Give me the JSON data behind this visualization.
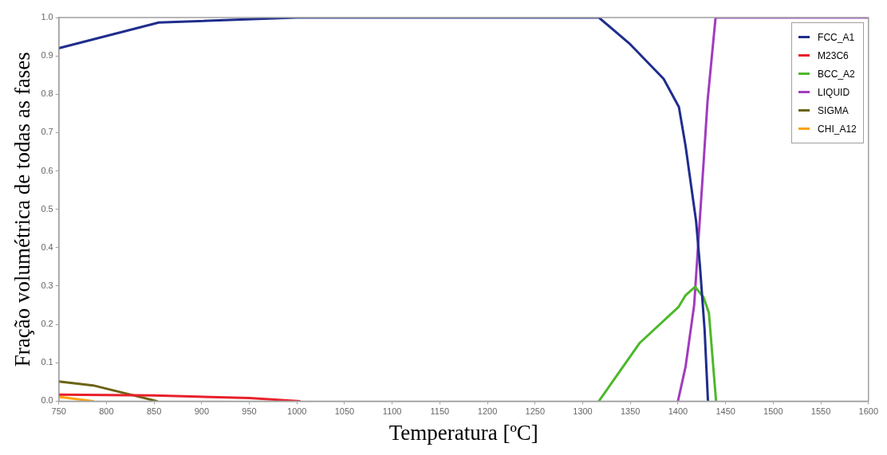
{
  "chart_data": {
    "type": "line",
    "xlabel": "Temperatura [ºC]",
    "ylabel": "Fração volumétrica de todas as fases",
    "xlim": [
      750,
      1600
    ],
    "xticks": [
      750,
      800,
      850,
      900,
      950,
      1000,
      1050,
      1100,
      1150,
      1200,
      1250,
      1300,
      1350,
      1400,
      1450,
      1500,
      1550,
      1600
    ],
    "ylim": [
      0,
      1
    ],
    "yticks": [
      {
        "value": 0,
        "label": "0.0"
      },
      0.1,
      0.2,
      0.3,
      0.4,
      0.5,
      0.6,
      0.7,
      0.8,
      0.9,
      {
        "value": 1,
        "label": "1.0"
      }
    ],
    "grid": false,
    "legend": "top right",
    "marker": "none",
    "line_style": "solid",
    "series": [
      {
        "name": "FCC_A1",
        "color": "#1f2d8c",
        "x": [
          750,
          855,
          1000,
          1317,
          1350,
          1385,
          1401,
          1408,
          1419,
          1423,
          1428,
          1431.5
        ],
        "values": [
          0.92,
          0.987,
          1.0,
          1.0,
          0.93,
          0.84,
          0.767,
          0.665,
          0.47,
          0.355,
          0.185,
          0
        ]
      },
      {
        "name": "M23C6",
        "color": "#e8202a",
        "x": [
          750,
          850,
          950,
          1003
        ],
        "values": [
          0.017,
          0.015,
          0.008,
          0
        ]
      },
      {
        "name": "BCC_A2",
        "color": "#4db82a",
        "x": [
          1317,
          1360,
          1400.5,
          1408,
          1418,
          1427,
          1432.5,
          1440
        ],
        "values": [
          0,
          0.152,
          0.245,
          0.276,
          0.298,
          0.27,
          0.23,
          0
        ]
      },
      {
        "name": "LIQUID",
        "color": "#a23bbf",
        "x": [
          1400,
          1408,
          1417,
          1421,
          1427,
          1431,
          1439.5,
          1600
        ],
        "values": [
          0,
          0.09,
          0.25,
          0.4,
          0.625,
          0.78,
          1.0,
          1.0
        ]
      },
      {
        "name": "SIGMA",
        "color": "#6b6213",
        "x": [
          750,
          786,
          853
        ],
        "values": [
          0.051,
          0.041,
          0
        ]
      },
      {
        "name": "CHI_A12",
        "color": "#ffa20a",
        "x": [
          750,
          786
        ],
        "values": [
          0.011,
          0
        ]
      }
    ]
  }
}
